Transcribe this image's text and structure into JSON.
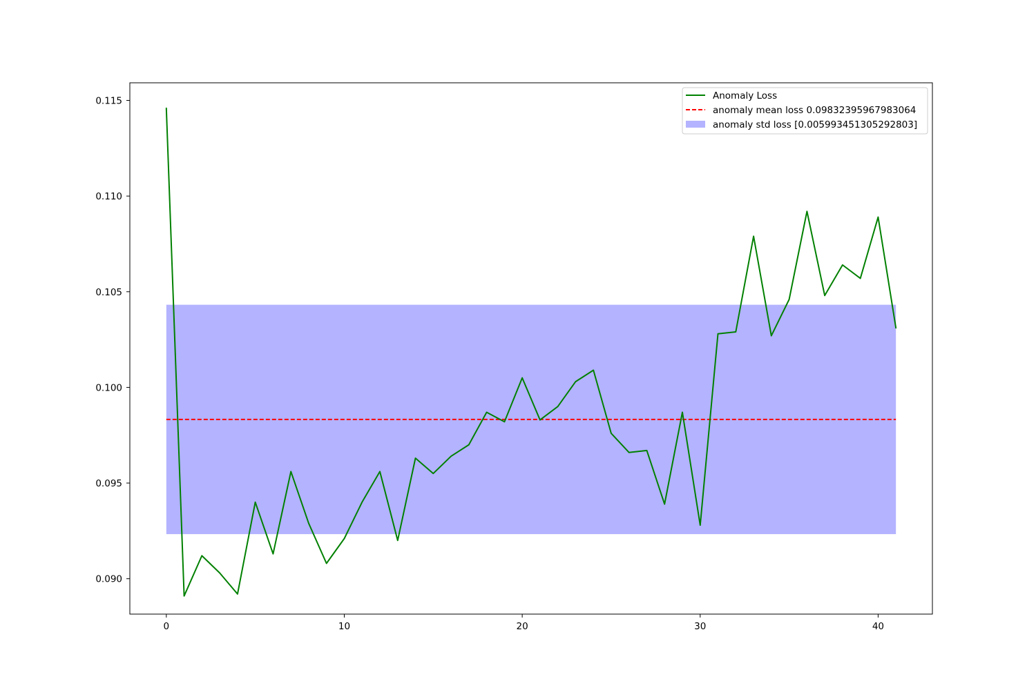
{
  "chart_data": {
    "type": "line",
    "title": "",
    "xlabel": "",
    "ylabel": "",
    "xlim": [
      -2.05,
      43.05
    ],
    "ylim": [
      0.08815,
      0.11592
    ],
    "xticks": [
      0,
      10,
      20,
      30,
      40
    ],
    "yticks": [
      0.09,
      0.095,
      0.1,
      0.105,
      0.11,
      0.115
    ],
    "xtick_labels": [
      "0",
      "10",
      "20",
      "30",
      "40"
    ],
    "ytick_labels": [
      "0.090",
      "0.095",
      "0.100",
      "0.105",
      "0.110",
      "0.115"
    ],
    "grid": false,
    "legend_position": "top-right",
    "series": [
      {
        "name": "Anomaly Loss",
        "kind": "line",
        "color": "#008000",
        "x": [
          0,
          1,
          2,
          3,
          4,
          5,
          6,
          7,
          8,
          9,
          10,
          11,
          12,
          13,
          14,
          15,
          16,
          17,
          18,
          19,
          20,
          21,
          22,
          23,
          24,
          25,
          26,
          27,
          28,
          29,
          30,
          31,
          32,
          33,
          34,
          35,
          36,
          37,
          38,
          39,
          40,
          41
        ],
        "values": [
          0.1146,
          0.0891,
          0.0912,
          0.0903,
          0.0892,
          0.094,
          0.0913,
          0.0956,
          0.0929,
          0.0908,
          0.0921,
          0.094,
          0.0956,
          0.092,
          0.0963,
          0.0955,
          0.0964,
          0.097,
          0.0987,
          0.0982,
          0.1005,
          0.0983,
          0.099,
          0.1003,
          0.1009,
          0.0976,
          0.0966,
          0.0967,
          0.0939,
          0.0987,
          0.0928,
          0.1028,
          0.1029,
          0.1079,
          0.1027,
          0.1046,
          0.1092,
          0.1048,
          0.1064,
          0.1057,
          0.1089,
          0.1031
        ]
      },
      {
        "name": "anomaly mean loss 0.09832395967983064",
        "kind": "hline",
        "color": "#ff0000",
        "style": "dashed",
        "y": 0.09832395967983064,
        "x_range": [
          0,
          41
        ]
      },
      {
        "name": "anomaly std loss [0.005993451305292803]",
        "kind": "band",
        "color": "#b3b3ff",
        "y_range": [
          0.09233,
          0.10432
        ],
        "x_range": [
          0,
          41
        ]
      }
    ]
  }
}
